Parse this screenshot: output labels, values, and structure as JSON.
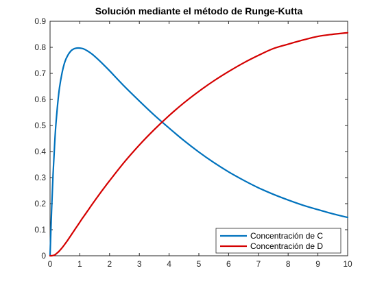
{
  "chart_data": {
    "type": "line",
    "title": "Solución mediante el método de Runge-Kutta",
    "xlabel": "",
    "ylabel": "",
    "xlim": [
      0,
      10
    ],
    "ylim": [
      0,
      0.9
    ],
    "x_ticks": [
      "0",
      "1",
      "2",
      "3",
      "4",
      "5",
      "6",
      "7",
      "8",
      "9",
      "10"
    ],
    "y_ticks": [
      "0",
      "0.1",
      "0.2",
      "0.3",
      "0.4",
      "0.5",
      "0.6",
      "0.7",
      "0.8",
      "0.9"
    ],
    "grid": false,
    "legend_position": "bottom-right",
    "x": [
      0,
      0.05,
      0.1,
      0.15,
      0.2,
      0.3,
      0.4,
      0.5,
      0.6,
      0.7,
      0.8,
      0.9,
      1.0,
      1.1,
      1.2,
      1.4,
      1.6,
      1.8,
      2.0,
      2.5,
      3.0,
      3.5,
      4.0,
      4.5,
      5.0,
      5.5,
      6.0,
      6.5,
      7.0,
      7.5,
      8.0,
      8.5,
      9.0,
      9.5,
      10.0
    ],
    "series": [
      {
        "name": "Concentración de C",
        "color": "#0072BD",
        "values": [
          0,
          0.17,
          0.31,
          0.42,
          0.51,
          0.63,
          0.7,
          0.745,
          0.77,
          0.786,
          0.794,
          0.797,
          0.797,
          0.795,
          0.79,
          0.775,
          0.755,
          0.733,
          0.71,
          0.65,
          0.594,
          0.54,
          0.49,
          0.442,
          0.398,
          0.358,
          0.322,
          0.29,
          0.261,
          0.236,
          0.214,
          0.194,
          0.177,
          0.161,
          0.147
        ]
      },
      {
        "name": "Concentración de D",
        "color": "#D40000",
        "values": [
          0,
          0.0,
          0.001,
          0.003,
          0.007,
          0.017,
          0.03,
          0.045,
          0.061,
          0.078,
          0.095,
          0.112,
          0.129,
          0.146,
          0.162,
          0.195,
          0.227,
          0.258,
          0.288,
          0.36,
          0.425,
          0.484,
          0.538,
          0.587,
          0.631,
          0.671,
          0.707,
          0.74,
          0.769,
          0.795,
          0.812,
          0.828,
          0.842,
          0.85,
          0.856
        ]
      }
    ]
  }
}
